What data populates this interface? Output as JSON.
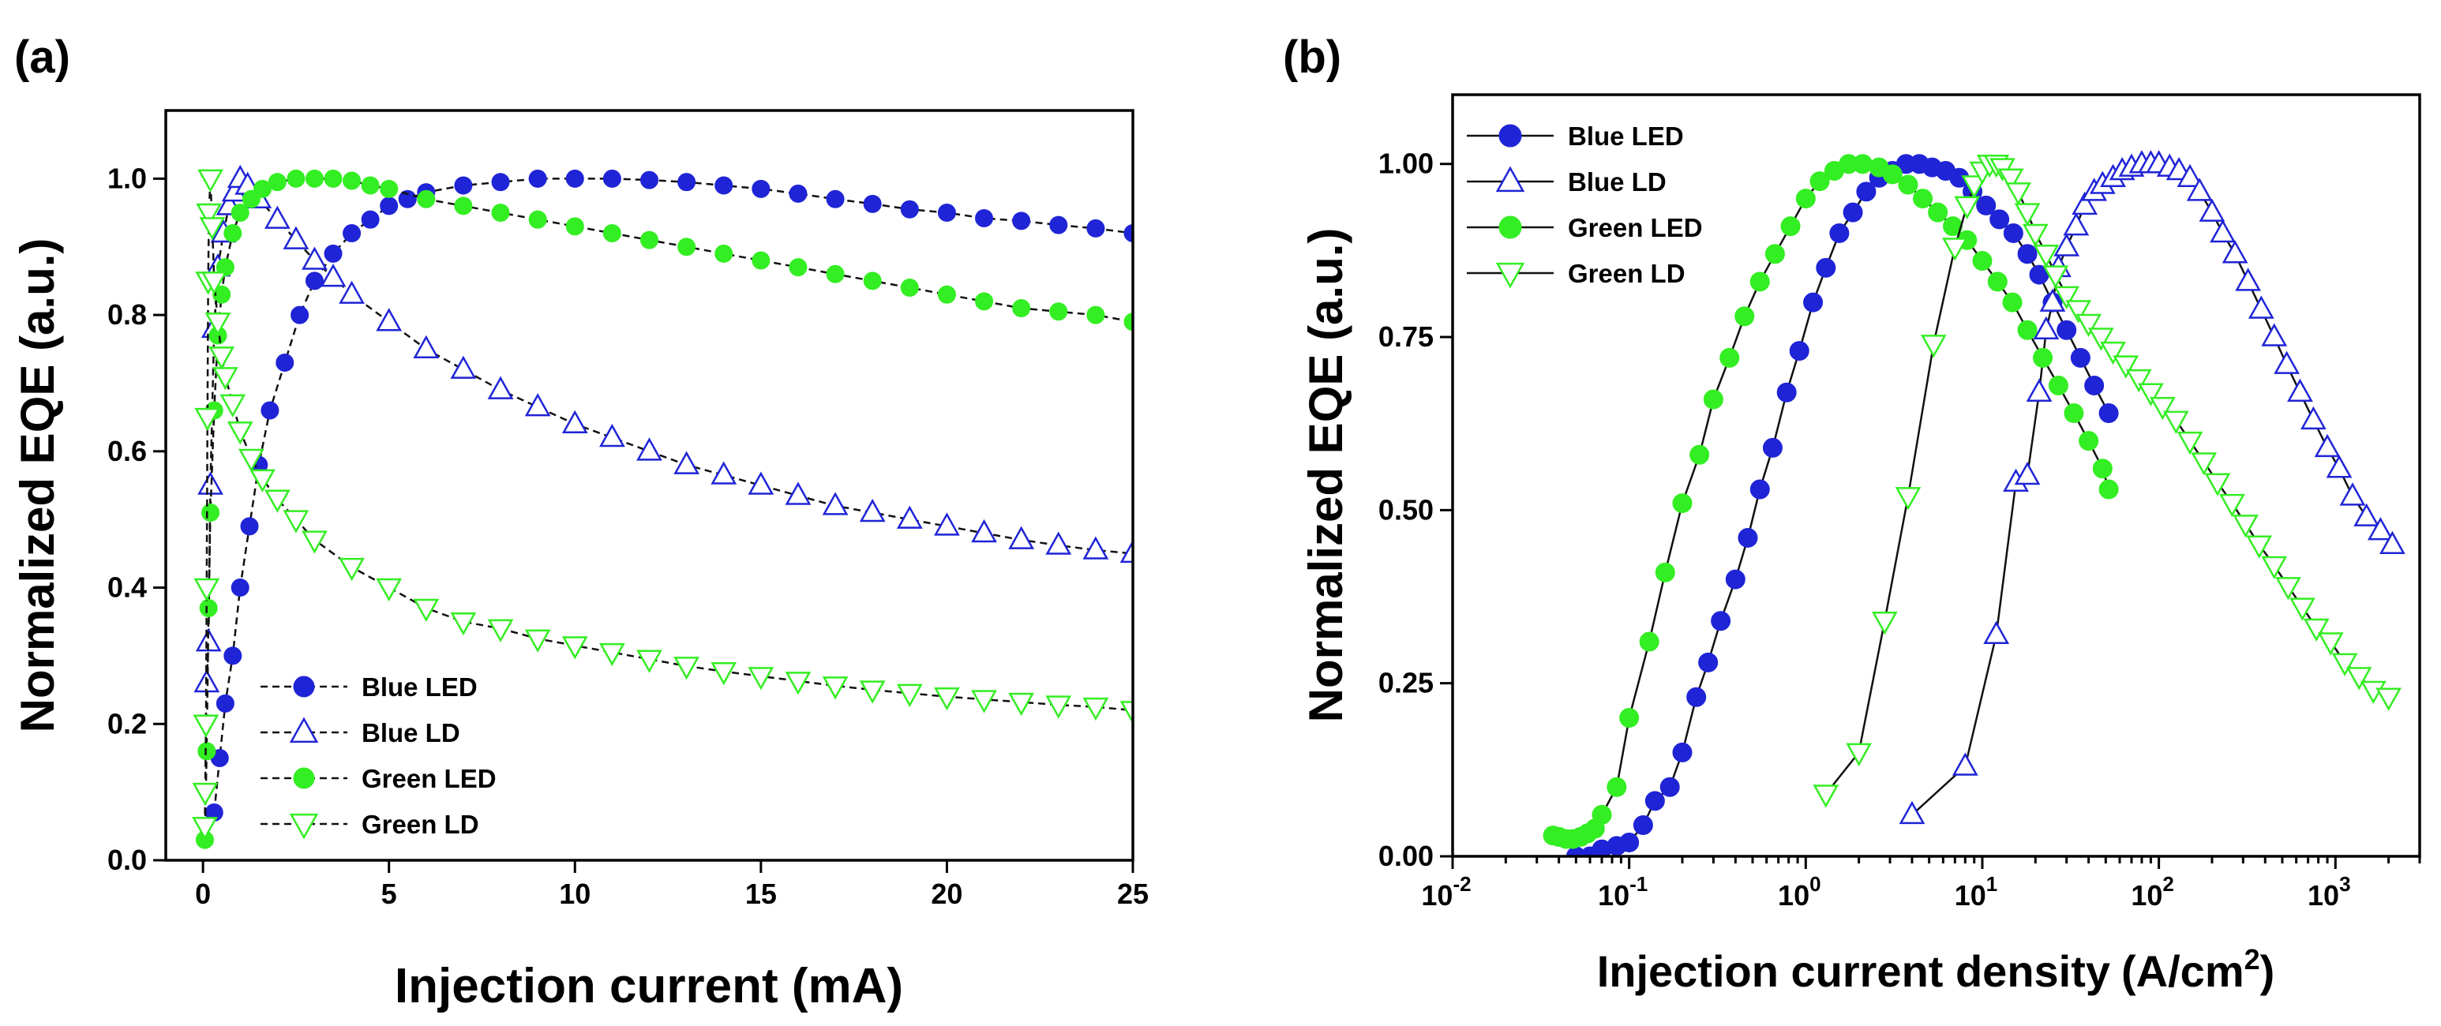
{
  "colors": {
    "blue": "#1f24d6",
    "green": "#33ee22",
    "axis": "#000000"
  },
  "chart_data": [
    {
      "panel": "(a)",
      "type": "scatter",
      "xlabel": "Injection current (mA)",
      "ylabel": "Normalized EQE (a.u.)",
      "xlim": [
        -1,
        25
      ],
      "ylim": [
        0,
        1.1
      ],
      "xticks": [
        0,
        5,
        10,
        15,
        20,
        25
      ],
      "xtick_labels": [
        "0",
        "5",
        "10",
        "15",
        "20",
        "25"
      ],
      "yticks": [
        0,
        0.2,
        0.4,
        0.6,
        0.8,
        1.0
      ],
      "ytick_labels": [
        "0.0",
        "0.2",
        "0.4",
        "0.6",
        "0.8",
        "1.0"
      ],
      "xscale": "linear",
      "legend_position": "bottom-center",
      "series": [
        {
          "name": "Blue LED",
          "color": "blue",
          "marker": "circle-filled",
          "x": [
            0.3,
            0.45,
            0.6,
            0.8,
            1.0,
            1.25,
            1.5,
            1.8,
            2.2,
            2.6,
            3.0,
            3.5,
            4.0,
            4.5,
            5.0,
            5.5,
            6.0,
            7.0,
            8.0,
            9.0,
            10.0,
            11.0,
            12.0,
            13.0,
            14.0,
            15.0,
            16.0,
            17.0,
            18.0,
            19.0,
            20.0,
            21.0,
            22.0,
            23.0,
            24.0,
            25.0
          ],
          "y": [
            0.07,
            0.15,
            0.23,
            0.3,
            0.4,
            0.49,
            0.58,
            0.66,
            0.73,
            0.8,
            0.85,
            0.89,
            0.92,
            0.94,
            0.96,
            0.97,
            0.98,
            0.99,
            0.995,
            1.0,
            1.0,
            1.0,
            0.998,
            0.995,
            0.99,
            0.985,
            0.978,
            0.97,
            0.963,
            0.955,
            0.95,
            0.942,
            0.938,
            0.932,
            0.927,
            0.92
          ]
        },
        {
          "name": "Blue LD",
          "color": "blue",
          "marker": "triangle-up-open",
          "x": [
            0.1,
            0.15,
            0.2,
            0.3,
            0.4,
            0.55,
            0.7,
            0.85,
            1.0,
            1.2,
            1.5,
            2,
            2.5,
            3,
            3.5,
            4,
            5,
            6,
            7,
            8,
            9,
            10,
            11,
            12,
            13,
            14,
            15,
            16,
            17,
            18,
            19,
            20,
            21,
            22,
            23,
            24,
            25
          ],
          "y": [
            0.26,
            0.32,
            0.55,
            0.78,
            0.87,
            0.92,
            0.96,
            0.98,
            1.0,
            0.99,
            0.97,
            0.94,
            0.91,
            0.88,
            0.855,
            0.83,
            0.79,
            0.75,
            0.72,
            0.69,
            0.665,
            0.64,
            0.62,
            0.6,
            0.58,
            0.565,
            0.55,
            0.535,
            0.52,
            0.51,
            0.5,
            0.49,
            0.48,
            0.47,
            0.462,
            0.455,
            0.45
          ]
        },
        {
          "name": "Green LED",
          "color": "green",
          "marker": "circle-filled",
          "x": [
            0.05,
            0.1,
            0.15,
            0.2,
            0.3,
            0.4,
            0.5,
            0.6,
            0.8,
            1.0,
            1.3,
            1.6,
            2.0,
            2.5,
            3.0,
            3.5,
            4.0,
            4.5,
            5.0,
            6.0,
            7.0,
            8.0,
            9.0,
            10.0,
            11.0,
            12.0,
            13.0,
            14.0,
            15.0,
            16.0,
            17.0,
            18.0,
            19.0,
            20.0,
            21.0,
            22.0,
            23.0,
            24.0,
            25.0
          ],
          "y": [
            0.03,
            0.16,
            0.37,
            0.51,
            0.66,
            0.77,
            0.83,
            0.87,
            0.92,
            0.95,
            0.97,
            0.985,
            0.995,
            1.0,
            1.0,
            1.0,
            0.997,
            0.99,
            0.985,
            0.97,
            0.96,
            0.95,
            0.94,
            0.93,
            0.92,
            0.91,
            0.9,
            0.89,
            0.88,
            0.87,
            0.86,
            0.85,
            0.84,
            0.83,
            0.82,
            0.81,
            0.805,
            0.8,
            0.79
          ]
        },
        {
          "name": "Green LD",
          "color": "green",
          "marker": "triangle-down-open",
          "x": [
            0.05,
            0.06,
            0.08,
            0.1,
            0.12,
            0.14,
            0.16,
            0.2,
            0.25,
            0.3,
            0.4,
            0.5,
            0.6,
            0.8,
            1,
            1.3,
            1.6,
            2,
            2.5,
            3,
            4,
            5,
            6,
            7,
            8,
            9,
            10,
            11,
            12,
            13,
            14,
            15,
            16,
            17,
            18,
            19,
            20,
            21,
            22,
            23,
            24,
            25
          ],
          "y": [
            0.05,
            0.1,
            0.2,
            0.4,
            0.65,
            0.85,
            0.95,
            1.0,
            0.93,
            0.85,
            0.79,
            0.74,
            0.71,
            0.67,
            0.63,
            0.59,
            0.56,
            0.53,
            0.5,
            0.47,
            0.43,
            0.4,
            0.37,
            0.35,
            0.34,
            0.325,
            0.315,
            0.305,
            0.295,
            0.285,
            0.277,
            0.27,
            0.263,
            0.256,
            0.25,
            0.245,
            0.24,
            0.236,
            0.232,
            0.228,
            0.225,
            0.22
          ]
        }
      ]
    },
    {
      "panel": "(b)",
      "type": "scatter",
      "xlabel": "Injection current density",
      "xlabel_unit": "(A/cm",
      "xlabel_sup": "2",
      "xlabel_close": ")",
      "ylabel": "Normalized EQE (a.u.)",
      "xscale": "log",
      "xlim": [
        0.01,
        3000
      ],
      "ylim": [
        0,
        1.1
      ],
      "xticks": [
        0.01,
        0.1,
        1,
        10,
        100,
        1000
      ],
      "xtick_base": [
        "10",
        "10",
        "10",
        "10",
        "10",
        "10"
      ],
      "xtick_exp": [
        "-2",
        "-1",
        "0",
        "1",
        "2",
        "3"
      ],
      "yticks": [
        0,
        0.25,
        0.5,
        0.75,
        1.0
      ],
      "ytick_labels": [
        "0.00",
        "0.25",
        "0.50",
        "0.75",
        "1.00"
      ],
      "legend_position": "top-left",
      "series": [
        {
          "name": "Blue LED",
          "color": "blue",
          "marker": "circle-filled",
          "x": [
            0.05,
            0.06,
            0.07,
            0.085,
            0.1,
            0.12,
            0.14,
            0.17,
            0.2,
            0.24,
            0.28,
            0.33,
            0.4,
            0.47,
            0.55,
            0.65,
            0.78,
            0.92,
            1.1,
            1.3,
            1.55,
            1.85,
            2.2,
            2.6,
            3.1,
            3.7,
            4.4,
            5.2,
            6.2,
            7.4,
            8.8,
            10.5,
            12.5,
            15,
            18,
            21,
            25,
            30,
            36,
            43,
            52
          ],
          "y": [
            0.0,
            0.0,
            0.01,
            0.015,
            0.02,
            0.045,
            0.08,
            0.1,
            0.15,
            0.23,
            0.28,
            0.34,
            0.4,
            0.46,
            0.53,
            0.59,
            0.67,
            0.73,
            0.8,
            0.85,
            0.9,
            0.93,
            0.96,
            0.98,
            0.99,
            1.0,
            1.0,
            0.995,
            0.99,
            0.98,
            0.96,
            0.94,
            0.92,
            0.9,
            0.87,
            0.84,
            0.8,
            0.76,
            0.72,
            0.68,
            0.64
          ]
        },
        {
          "name": "Blue LD",
          "color": "blue",
          "marker": "triangle-up-open",
          "x": [
            4.0,
            8.0,
            12.0,
            15.5,
            18.0,
            21.0,
            23.0,
            25.0,
            27.0,
            30.0,
            34.0,
            38.0,
            43.0,
            48.0,
            55.0,
            62.0,
            70.0,
            80.0,
            90.0,
            100.0,
            115.0,
            130.0,
            150.0,
            170.0,
            200.0,
            230.0,
            270.0,
            320.0,
            380.0,
            450.0,
            530.0,
            630.0,
            750.0,
            900.0,
            1050.0,
            1250.0,
            1500.0,
            1800.0,
            2100.0
          ],
          "y": [
            0.06,
            0.13,
            0.32,
            0.54,
            0.55,
            0.67,
            0.76,
            0.8,
            0.85,
            0.88,
            0.91,
            0.94,
            0.96,
            0.97,
            0.98,
            0.99,
            0.995,
            1.0,
            1.0,
            1.0,
            0.995,
            0.99,
            0.98,
            0.96,
            0.93,
            0.9,
            0.87,
            0.83,
            0.79,
            0.75,
            0.71,
            0.67,
            0.63,
            0.59,
            0.56,
            0.52,
            0.49,
            0.47,
            0.45
          ]
        },
        {
          "name": "Green LED",
          "color": "green",
          "marker": "circle-filled",
          "x": [
            0.037,
            0.04,
            0.044,
            0.048,
            0.053,
            0.058,
            0.064,
            0.07,
            0.085,
            0.1,
            0.13,
            0.16,
            0.2,
            0.25,
            0.3,
            0.37,
            0.45,
            0.55,
            0.67,
            0.82,
            1.0,
            1.2,
            1.45,
            1.75,
            2.1,
            2.6,
            3.1,
            3.8,
            4.6,
            5.6,
            6.8,
            8.2,
            10,
            12.2,
            14.8,
            18,
            22,
            27,
            33,
            40,
            48,
            52
          ],
          "y": [
            0.03,
            0.028,
            0.025,
            0.025,
            0.028,
            0.033,
            0.04,
            0.06,
            0.1,
            0.2,
            0.31,
            0.41,
            0.51,
            0.58,
            0.66,
            0.72,
            0.78,
            0.83,
            0.87,
            0.91,
            0.95,
            0.975,
            0.99,
            1.0,
            1.0,
            0.995,
            0.985,
            0.97,
            0.95,
            0.93,
            0.91,
            0.89,
            0.86,
            0.83,
            0.8,
            0.76,
            0.72,
            0.68,
            0.64,
            0.6,
            0.56,
            0.53
          ]
        },
        {
          "name": "Green LD",
          "color": "green",
          "marker": "triangle-down-open",
          "x": [
            1.3,
            2.0,
            2.8,
            3.8,
            5.3,
            7.0,
            8.2,
            9.0,
            10.0,
            11.0,
            12.0,
            13.0,
            14.5,
            16.0,
            18.0,
            20.0,
            23.0,
            26.0,
            30.0,
            35.0,
            40.0,
            47.0,
            55.0,
            65.0,
            77.0,
            90.0,
            105.0,
            125.0,
            150.0,
            180.0,
            215.0,
            260.0,
            310.0,
            370.0,
            450.0,
            540.0,
            650.0,
            780.0,
            940.0,
            1130.0,
            1360.0,
            1640.0,
            2000.0
          ],
          "y": [
            0.09,
            0.15,
            0.34,
            0.52,
            0.74,
            0.88,
            0.94,
            0.97,
            0.99,
            1.0,
            1.0,
            0.995,
            0.98,
            0.96,
            0.93,
            0.9,
            0.87,
            0.84,
            0.81,
            0.79,
            0.77,
            0.75,
            0.73,
            0.71,
            0.69,
            0.67,
            0.65,
            0.63,
            0.6,
            0.57,
            0.54,
            0.51,
            0.48,
            0.45,
            0.42,
            0.39,
            0.36,
            0.33,
            0.31,
            0.28,
            0.26,
            0.24,
            0.23
          ]
        }
      ]
    }
  ]
}
